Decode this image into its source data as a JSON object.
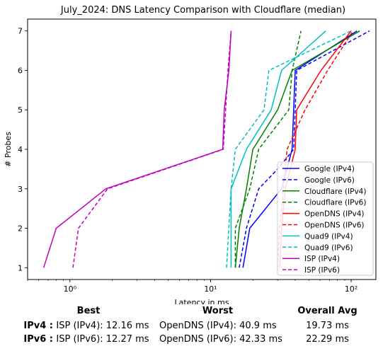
{
  "chart_data": {
    "type": "line",
    "title": "July_2024: DNS Latency Comparison with Cloudflare (median)",
    "xlabel": "Latency in ms",
    "ylabel": "# Probes",
    "xscale": "log",
    "xlim": [
      0.5,
      150
    ],
    "ylim": [
      0.7,
      7.3
    ],
    "xticks": [
      {
        "value": 1,
        "label": "10⁰"
      },
      {
        "value": 10,
        "label": "10¹"
      },
      {
        "value": 100,
        "label": "10²"
      }
    ],
    "yticks": [
      1,
      2,
      3,
      4,
      5,
      6,
      7
    ],
    "grid": false,
    "legend_position": "lower-right",
    "series": [
      {
        "name": "Google (IPv4)",
        "color": "#0000ff",
        "dash": "solid",
        "points": [
          [
            17,
            1
          ],
          [
            19,
            2
          ],
          [
            32,
            3
          ],
          [
            38,
            4
          ],
          [
            39,
            5
          ],
          [
            40,
            6
          ],
          [
            110,
            7
          ]
        ]
      },
      {
        "name": "Google (IPv6)",
        "color": "#0000ff",
        "dash": "dashed",
        "points": [
          [
            16,
            1
          ],
          [
            18,
            2
          ],
          [
            22,
            3
          ],
          [
            30,
            3.5
          ],
          [
            39,
            4
          ],
          [
            40,
            5
          ],
          [
            41,
            6
          ],
          [
            135,
            7
          ]
        ]
      },
      {
        "name": "Cloudflare (IPv4)",
        "color": "#008000",
        "dash": "solid",
        "points": [
          [
            15,
            1
          ],
          [
            16,
            2
          ],
          [
            18,
            3
          ],
          [
            20,
            4
          ],
          [
            30,
            5
          ],
          [
            38,
            6
          ],
          [
            115,
            7
          ]
        ]
      },
      {
        "name": "Cloudflare (IPv6)",
        "color": "#008000",
        "dash": "dashed",
        "points": [
          [
            15,
            1
          ],
          [
            15,
            2
          ],
          [
            19,
            3
          ],
          [
            22,
            4
          ],
          [
            36,
            5
          ],
          [
            38,
            6
          ],
          [
            44,
            7
          ]
        ]
      },
      {
        "name": "OpenDNS (IPv4)",
        "color": "#ff0000",
        "dash": "solid",
        "points": [
          [
            31,
            1
          ],
          [
            32,
            2
          ],
          [
            34,
            3
          ],
          [
            40,
            4
          ],
          [
            41,
            5
          ],
          [
            61,
            6
          ],
          [
            100,
            7
          ]
        ]
      },
      {
        "name": "OpenDNS (IPv6)",
        "color": "#ff0000",
        "dash": "dashed",
        "points": [
          [
            30,
            1
          ],
          [
            31,
            2
          ],
          [
            33,
            3
          ],
          [
            35,
            4
          ],
          [
            47,
            5
          ],
          [
            68,
            6
          ],
          [
            103,
            7
          ]
        ]
      },
      {
        "name": "Quad9 (IPv4)",
        "color": "#00bfbf",
        "dash": "solid",
        "points": [
          [
            14,
            1
          ],
          [
            14,
            3
          ],
          [
            18,
            4
          ],
          [
            27,
            5
          ],
          [
            32,
            6
          ],
          [
            66,
            7
          ]
        ]
      },
      {
        "name": "Quad9 (IPv6)",
        "color": "#00bfbf",
        "dash": "dashed",
        "points": [
          [
            13,
            1
          ],
          [
            14,
            3
          ],
          [
            15,
            4
          ],
          [
            24,
            5
          ],
          [
            26,
            6
          ],
          [
            100,
            7
          ]
        ]
      },
      {
        "name": "ISP (IPv4)",
        "color": "#bf00bf",
        "dash": "solid",
        "points": [
          [
            0.65,
            1
          ],
          [
            0.8,
            2
          ],
          [
            1.8,
            3
          ],
          [
            12.2,
            4
          ],
          [
            12.5,
            5
          ],
          [
            13.5,
            6
          ],
          [
            14,
            7
          ]
        ]
      },
      {
        "name": "ISP (IPv6)",
        "color": "#bf00bf",
        "dash": "dashed",
        "points": [
          [
            1.05,
            1
          ],
          [
            1.15,
            2
          ],
          [
            1.85,
            3
          ],
          [
            12.3,
            4
          ],
          [
            12.8,
            5
          ],
          [
            13.3,
            6
          ],
          [
            14,
            7
          ]
        ]
      }
    ]
  },
  "summary": {
    "headers": {
      "best": "Best",
      "worst": "Worst",
      "avg": "Overall Avg"
    },
    "rows": [
      {
        "label": "IPv4 :",
        "best": "ISP (IPv4): 12.16 ms",
        "worst": "OpenDNS (IPv4): 40.9 ms",
        "avg": "19.73 ms"
      },
      {
        "label": "IPv6 :",
        "best": "ISP (IPv6): 12.27 ms",
        "worst": "OpenDNS (IPv6): 42.33 ms",
        "avg": "22.29 ms"
      }
    ]
  }
}
